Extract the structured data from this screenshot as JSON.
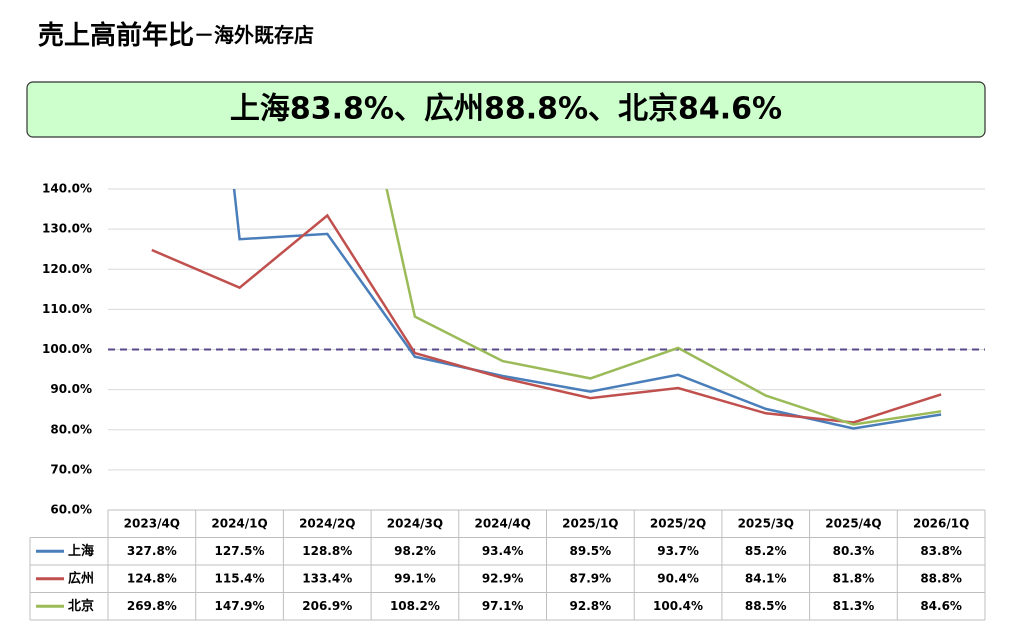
{
  "chart_data": {
    "type": "line",
    "title": "売上高前年比",
    "subtitle": "－海外既存店",
    "banner": "上海83.8%、広州88.8%、北京84.6%",
    "categories": [
      "2023/4Q",
      "2024/1Q",
      "2024/2Q",
      "2024/3Q",
      "2024/4Q",
      "2025/1Q",
      "2025/2Q",
      "2025/3Q",
      "2025/4Q",
      "2026/1Q"
    ],
    "series": [
      {
        "name": "上海",
        "color": "#4a7ebb",
        "values": [
          327.8,
          127.5,
          128.8,
          98.2,
          93.4,
          89.5,
          93.7,
          85.2,
          80.3,
          83.8
        ],
        "value_labels": [
          "327.8%",
          "127.5%",
          "128.8%",
          "98.2%",
          "93.4%",
          "89.5%",
          "93.7%",
          "85.2%",
          "80.3%",
          "83.8%"
        ]
      },
      {
        "name": "広州",
        "color": "#c0504d",
        "values": [
          124.8,
          115.4,
          133.4,
          99.1,
          92.9,
          87.9,
          90.4,
          84.1,
          81.8,
          88.8
        ],
        "value_labels": [
          "124.8%",
          "115.4%",
          "133.4%",
          "99.1%",
          "92.9%",
          "87.9%",
          "90.4%",
          "84.1%",
          "81.8%",
          "88.8%"
        ]
      },
      {
        "name": "北京",
        "color": "#9bbb59",
        "values": [
          269.8,
          147.9,
          206.9,
          108.2,
          97.1,
          92.8,
          100.4,
          88.5,
          81.3,
          84.6
        ],
        "value_labels": [
          "269.8%",
          "147.9%",
          "206.9%",
          "108.2%",
          "97.1%",
          "92.8%",
          "100.4%",
          "88.5%",
          "81.3%",
          "84.6%"
        ]
      }
    ],
    "ylim": [
      60,
      140
    ],
    "yticks": [
      {
        "value": 60,
        "label": "60.0%"
      },
      {
        "value": 70,
        "label": "70.0%"
      },
      {
        "value": 80,
        "label": "80.0%"
      },
      {
        "value": 90,
        "label": "90.0%"
      },
      {
        "value": 100,
        "label": "100.0%"
      },
      {
        "value": 110,
        "label": "110.0%"
      },
      {
        "value": 120,
        "label": "120.0%"
      },
      {
        "value": 130,
        "label": "130.0%"
      },
      {
        "value": 140,
        "label": "140.0%"
      }
    ],
    "reference_line": {
      "value": 100,
      "color": "#5b4a8b"
    },
    "grid": true
  }
}
